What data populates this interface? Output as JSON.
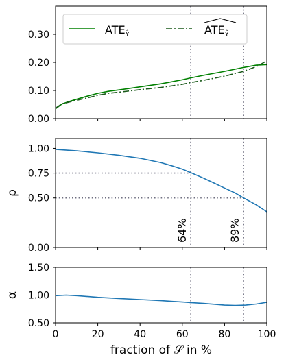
{
  "chart_data": [
    {
      "type": "line",
      "panel": "top",
      "title": "",
      "xlabel": "",
      "ylabel": "",
      "xlim": [
        0,
        100
      ],
      "ylim": [
        0.0,
        0.4
      ],
      "yticks": [
        0.0,
        0.1,
        0.2,
        0.3
      ],
      "ytick_labels": [
        "0.00",
        "0.10",
        "0.20",
        "0.30"
      ],
      "grid": false,
      "legend": "top",
      "vlines": [
        64,
        89
      ],
      "x": [
        0,
        3,
        6,
        10,
        15,
        20,
        25,
        30,
        40,
        50,
        60,
        64,
        70,
        80,
        89,
        95,
        100
      ],
      "series": [
        {
          "name": "ATE_Ŷ",
          "label_base": "ATE",
          "label_sub": "Ŷ",
          "label_hat": false,
          "color": "#008000",
          "dash": "solid",
          "values": [
            0.035,
            0.052,
            0.06,
            0.069,
            0.08,
            0.09,
            0.097,
            0.102,
            0.113,
            0.124,
            0.138,
            0.145,
            0.154,
            0.168,
            0.182,
            0.19,
            0.192
          ]
        },
        {
          "name": "ATE-hat_Ŷ",
          "label_base": "ATE",
          "label_sub": "Ŷ",
          "label_hat": true,
          "color": "#1a5a1a",
          "dash": "dashdot",
          "values": [
            0.037,
            0.053,
            0.058,
            0.065,
            0.074,
            0.083,
            0.09,
            0.094,
            0.103,
            0.111,
            0.122,
            0.128,
            0.136,
            0.151,
            0.168,
            0.185,
            0.205
          ]
        }
      ]
    },
    {
      "type": "line",
      "panel": "middle",
      "xlabel": "",
      "ylabel": "ρ",
      "xlim": [
        0,
        100
      ],
      "ylim": [
        0.0,
        1.1
      ],
      "yticks": [
        0.0,
        0.5,
        0.75,
        1.0
      ],
      "ytick_labels": [
        "0.00",
        "0.50",
        "0.75",
        "1.00"
      ],
      "grid": false,
      "vlines": [
        64,
        89
      ],
      "vline_labels": [
        "64%",
        "89%"
      ],
      "hlines": [
        0.75,
        0.5
      ],
      "x": [
        0,
        10,
        20,
        30,
        40,
        50,
        55,
        60,
        64,
        70,
        75,
        80,
        85,
        89,
        95,
        100
      ],
      "series": [
        {
          "name": "ρ",
          "color": "#1f77b4",
          "values": [
            0.99,
            0.975,
            0.955,
            0.93,
            0.9,
            0.855,
            0.825,
            0.79,
            0.755,
            0.7,
            0.65,
            0.6,
            0.55,
            0.5,
            0.43,
            0.36
          ]
        }
      ]
    },
    {
      "type": "line",
      "panel": "bottom",
      "xlabel": "fraction of 𝒮 in %",
      "ylabel": "α",
      "xlim": [
        0,
        100
      ],
      "ylim": [
        0.5,
        1.5
      ],
      "yticks": [
        0.5,
        1.0,
        1.5
      ],
      "ytick_labels": [
        "0.50",
        "1.00",
        "1.50"
      ],
      "xticks": [
        0,
        20,
        40,
        60,
        80,
        100
      ],
      "xtick_labels": [
        "0",
        "20",
        "40",
        "60",
        "80",
        "100"
      ],
      "grid": false,
      "vlines": [
        64,
        89
      ],
      "x": [
        0,
        5,
        10,
        20,
        30,
        40,
        50,
        60,
        64,
        70,
        80,
        85,
        90,
        95,
        100
      ],
      "series": [
        {
          "name": "α",
          "color": "#1f77b4",
          "values": [
            0.99,
            1.0,
            0.99,
            0.96,
            0.94,
            0.92,
            0.9,
            0.875,
            0.865,
            0.85,
            0.82,
            0.815,
            0.82,
            0.84,
            0.87
          ]
        }
      ]
    }
  ]
}
